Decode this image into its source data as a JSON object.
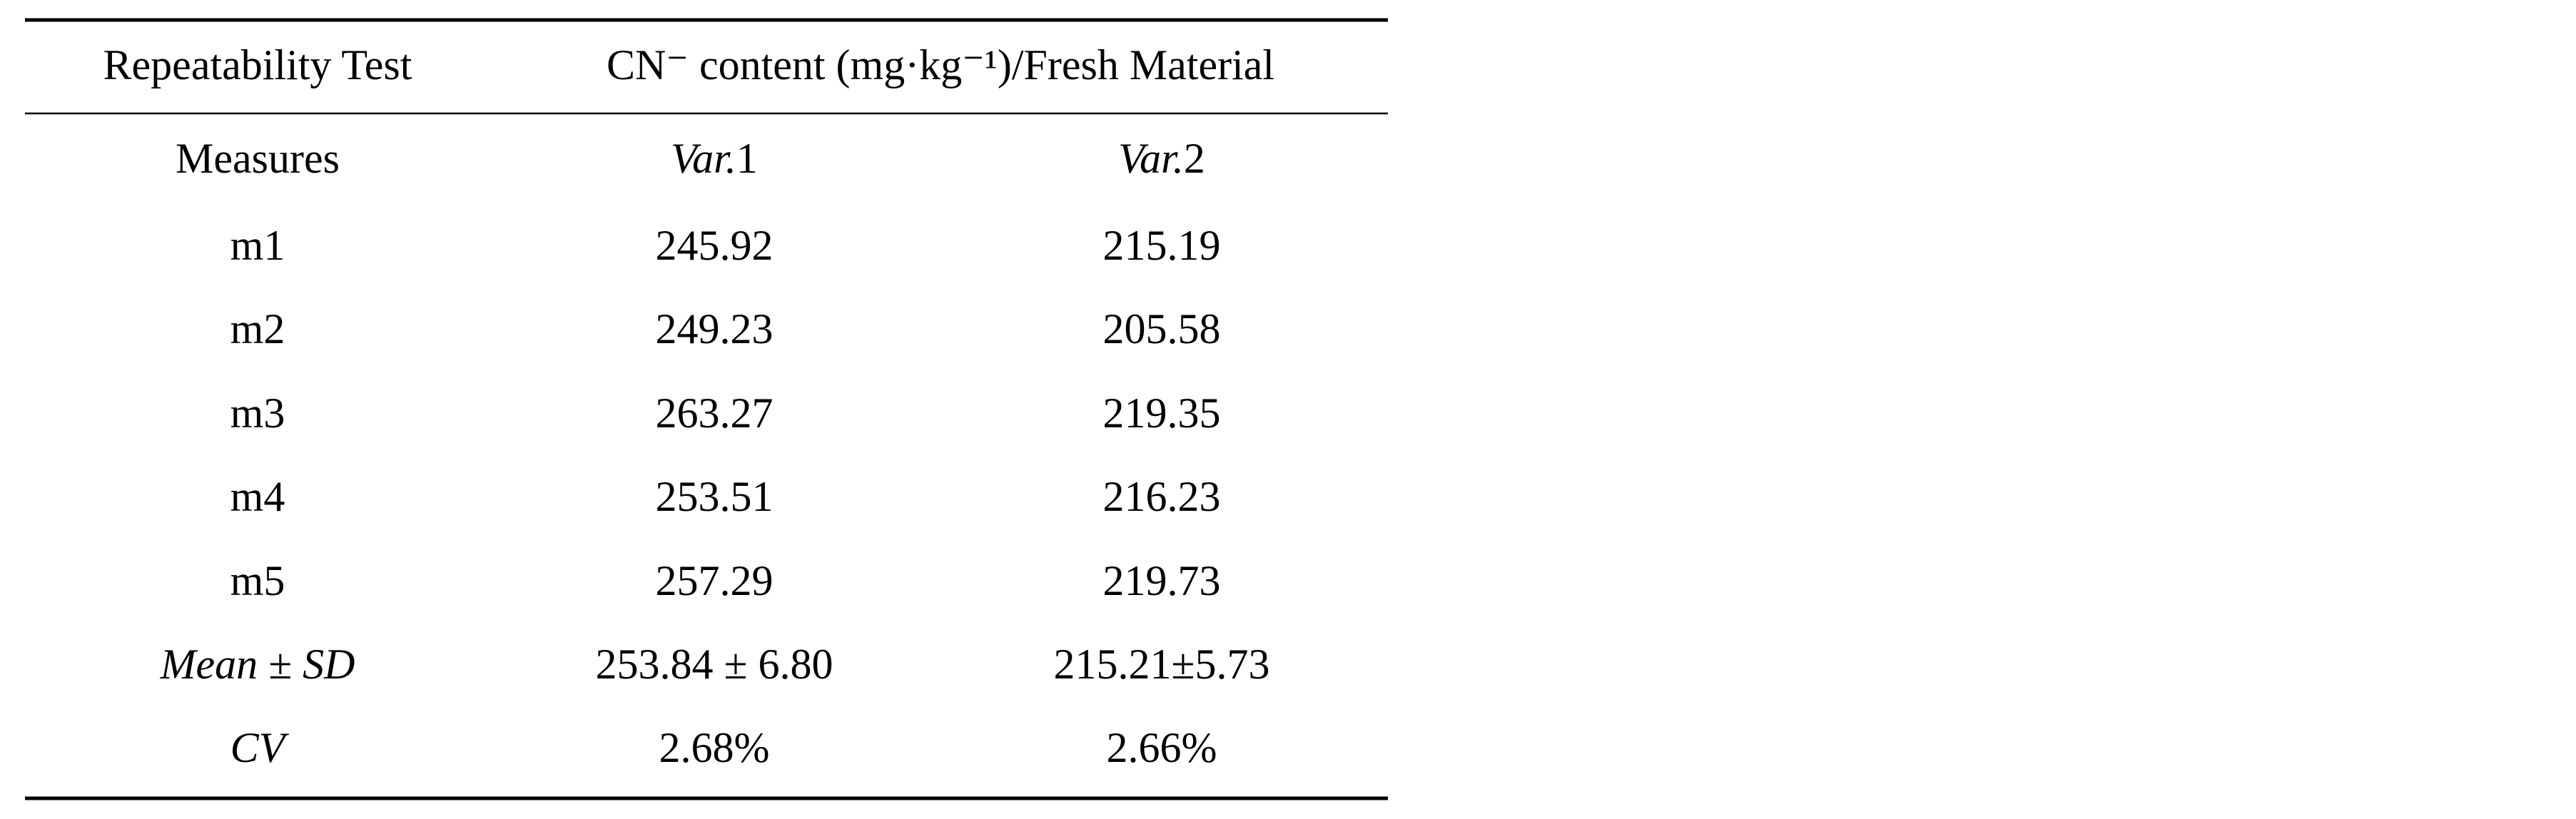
{
  "table": {
    "header": [
      "Repeatability Test",
      "CN⁻ content (mg·kg⁻¹)/Fresh Material"
    ],
    "subheader": [
      "Measures",
      {
        "italic": "Var.",
        "text": "1"
      },
      {
        "italic": "Var.",
        "text": "2"
      }
    ],
    "rows": [
      [
        "m1",
        "245.92",
        "215.19"
      ],
      [
        "m2",
        "249.23",
        "205.58"
      ],
      [
        "m3",
        "263.27",
        "219.35"
      ],
      [
        "m4",
        "253.51",
        "216.23"
      ],
      [
        "m5",
        "257.29",
        "219.73"
      ],
      [
        "Mean ± SD",
        "253.84 ± 6.80",
        "215.21±5.73"
      ],
      [
        "CV",
        "2.68%",
        "2.66%"
      ]
    ]
  }
}
